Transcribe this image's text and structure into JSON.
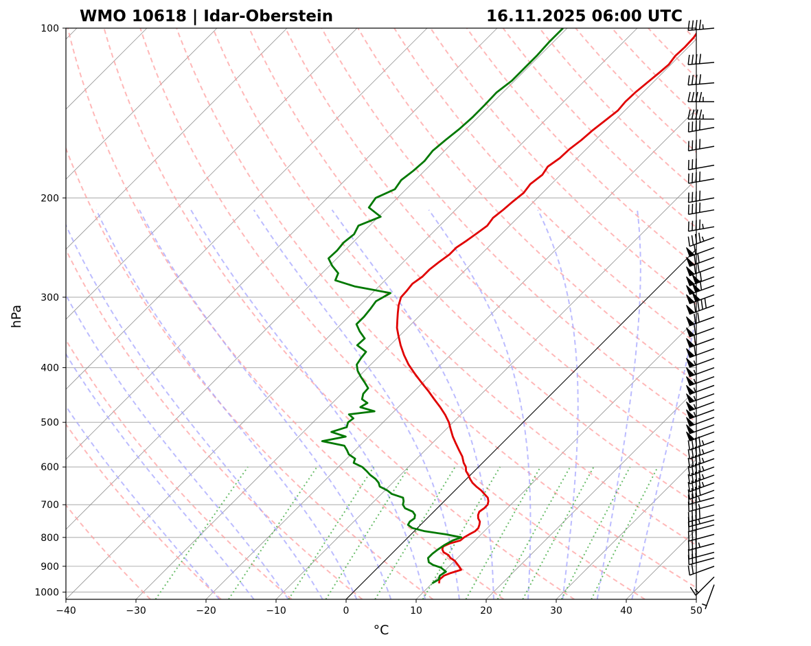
{
  "chart_data": {
    "type": "line",
    "title_left": "WMO 10618 | Idar-Oberstein",
    "title_right": "16.11.2025 06:00 UTC",
    "xlabel": "°C",
    "ylabel": "hPa",
    "xlim": [
      -40,
      50
    ],
    "pressure_range": [
      1030,
      100
    ],
    "log_pressure": true,
    "skew_degrees": 45,
    "grid": true,
    "x_ticks": [
      -40,
      -30,
      -20,
      -10,
      0,
      10,
      20,
      30,
      40,
      50
    ],
    "x_tick_labels": [
      "−40",
      "−30",
      "−20",
      "−10",
      "0",
      "10",
      "20",
      "30",
      "40",
      "50"
    ],
    "y_ticks": [
      1000,
      900,
      800,
      700,
      600,
      500,
      400,
      300,
      200,
      100
    ],
    "y_tick_labels": [
      "1000",
      "900",
      "800",
      "700",
      "600",
      "500",
      "400",
      "300",
      "200",
      "100"
    ],
    "colors": {
      "temperature": "#e00000",
      "dewpoint": "#007800",
      "dry_adiabats": "#ff9a9a",
      "moist_adiabats": "#a6a6ff",
      "mixing_ratio": "#4fb04f",
      "isotherms": "#808080",
      "zero_isotherm": "#000000",
      "barbs": "#000000"
    },
    "series": [
      {
        "key": "temperature",
        "pressure": [
          965,
          950,
          935,
          925,
          913,
          900,
          890,
          880,
          870,
          860,
          850,
          840,
          830,
          820,
          810,
          800,
          790,
          780,
          770,
          760,
          750,
          740,
          730,
          720,
          710,
          700,
          690,
          680,
          670,
          660,
          650,
          640,
          630,
          620,
          610,
          600,
          590,
          575,
          560,
          545,
          530,
          515,
          500,
          485,
          470,
          455,
          440,
          425,
          410,
          395,
          380,
          365,
          350,
          340,
          330,
          320,
          310,
          300,
          292,
          284,
          276,
          268,
          260,
          252,
          245,
          238,
          231,
          224,
          217,
          210,
          203,
          196,
          189,
          182,
          176,
          170,
          164,
          158,
          152,
          146,
          140,
          135,
          130,
          125,
          120,
          116,
          112,
          108,
          104,
          100
        ],
        "values": [
          11.0,
          10.5,
          10.6,
          11.2,
          12.2,
          11.4,
          10.7,
          10.0,
          9.0,
          8.3,
          7.2,
          6.6,
          6.3,
          6.8,
          7.9,
          8.0,
          8.3,
          8.7,
          8.7,
          8.4,
          8.0,
          7.3,
          6.8,
          6.5,
          6.7,
          6.7,
          6.3,
          5.7,
          4.7,
          3.7,
          2.5,
          1.4,
          0.5,
          -0.3,
          -1.2,
          -1.8,
          -2.7,
          -3.8,
          -5.2,
          -6.6,
          -8.0,
          -9.3,
          -10.6,
          -12.2,
          -14.0,
          -16.0,
          -18.0,
          -20.2,
          -22.4,
          -24.6,
          -26.6,
          -28.5,
          -30.3,
          -31.5,
          -32.5,
          -33.5,
          -34.5,
          -35.3,
          -35.4,
          -35.6,
          -35.2,
          -35.2,
          -34.9,
          -34.5,
          -34.5,
          -34.0,
          -33.6,
          -33.2,
          -33.5,
          -33.2,
          -33.0,
          -32.7,
          -33.0,
          -32.6,
          -33.0,
          -32.5,
          -32.4,
          -32.0,
          -31.8,
          -31.4,
          -31.0,
          -31.2,
          -31.1,
          -30.8,
          -30.5,
          -30.3,
          -30.6,
          -30.5,
          -30.6,
          -31.0
        ]
      },
      {
        "key": "dewpoint",
        "pressure": [
          965,
          950,
          935,
          920,
          905,
          895,
          885,
          870,
          855,
          840,
          825,
          810,
          800,
          790,
          780,
          770,
          760,
          750,
          740,
          730,
          720,
          710,
          700,
          690,
          680,
          670,
          660,
          650,
          640,
          630,
          620,
          610,
          600,
          590,
          580,
          570,
          560,
          550,
          540,
          530,
          520,
          510,
          500,
          492,
          484,
          478,
          470,
          462,
          455,
          445,
          435,
          425,
          415,
          405,
          395,
          385,
          375,
          365,
          355,
          345,
          335,
          325,
          315,
          305,
          295,
          287,
          280,
          272,
          264,
          256,
          248,
          240,
          232,
          224,
          216,
          208,
          200,
          193,
          186,
          179,
          172,
          165,
          158,
          151,
          144,
          137,
          130,
          124,
          118,
          112,
          106,
          100
        ],
        "values": [
          10.0,
          10.4,
          10.0,
          10.3,
          9.0,
          7.5,
          6.5,
          5.8,
          5.8,
          6.0,
          6.3,
          6.8,
          7.6,
          5.0,
          1.5,
          -0.7,
          -1.8,
          -2.0,
          -1.8,
          -2.2,
          -3.0,
          -4.6,
          -5.4,
          -5.8,
          -6.4,
          -8.5,
          -9.7,
          -11.3,
          -12.0,
          -13.0,
          -14.3,
          -15.4,
          -16.6,
          -18.4,
          -18.8,
          -20.3,
          -21.2,
          -22.2,
          -26.0,
          -23.3,
          -26.0,
          -24.5,
          -25.0,
          -24.8,
          -26.0,
          -22.8,
          -25.4,
          -25.0,
          -26.3,
          -26.9,
          -27.0,
          -28.3,
          -29.7,
          -31.0,
          -32.0,
          -32.3,
          -32.5,
          -34.7,
          -34.6,
          -36.3,
          -37.8,
          -37.8,
          -38.0,
          -38.3,
          -37.4,
          -43.5,
          -47.1,
          -47.7,
          -49.6,
          -51.2,
          -51.1,
          -51.3,
          -51.0,
          -51.6,
          -49.7,
          -52.7,
          -53.1,
          -51.6,
          -52.0,
          -51.6,
          -51.4,
          -51.7,
          -51.4,
          -51.0,
          -50.8,
          -50.8,
          -50.9,
          -50.4,
          -50.4,
          -50.4,
          -50.6,
          -50.6
        ]
      }
    ],
    "wind_barbs": {
      "pressure": [
        970,
        940,
        900,
        870,
        850,
        820,
        790,
        760,
        745,
        730,
        700,
        680,
        660,
        640,
        620,
        600,
        580,
        560,
        540,
        520,
        505,
        490,
        475,
        460,
        445,
        430,
        415,
        400,
        385,
        370,
        355,
        340,
        325,
        310,
        297,
        286,
        276,
        265,
        255,
        245,
        235,
        225,
        210,
        200,
        185,
        175,
        162,
        150,
        145,
        135,
        125,
        115,
        100
      ],
      "speed_kt": [
        5,
        15,
        20,
        30,
        30,
        35,
        30,
        30,
        35,
        40,
        35,
        35,
        40,
        45,
        45,
        45,
        45,
        45,
        45,
        50,
        50,
        50,
        55,
        55,
        55,
        55,
        55,
        55,
        55,
        60,
        60,
        60,
        70,
        90,
        100,
        110,
        110,
        70,
        70,
        60,
        45,
        45,
        40,
        40,
        40,
        30,
        40,
        40,
        45,
        45,
        40,
        40,
        45
      ],
      "direction_deg": [
        200,
        225,
        250,
        255,
        255,
        255,
        255,
        255,
        255,
        255,
        255,
        255,
        250,
        250,
        250,
        250,
        250,
        250,
        250,
        250,
        250,
        250,
        250,
        250,
        250,
        250,
        250,
        250,
        250,
        250,
        250,
        250,
        250,
        250,
        250,
        250,
        250,
        250,
        250,
        250,
        250,
        260,
        260,
        260,
        260,
        260,
        260,
        260,
        270,
        270,
        265,
        265,
        265
      ]
    }
  }
}
